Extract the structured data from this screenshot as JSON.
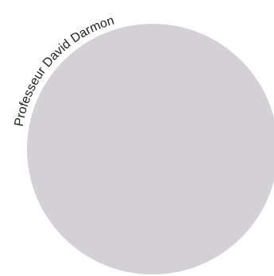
{
  "avatar": {
    "fill_color": "#d3d0d6",
    "curved_label": "Professeur David Darmon",
    "label_color": "#222222"
  }
}
